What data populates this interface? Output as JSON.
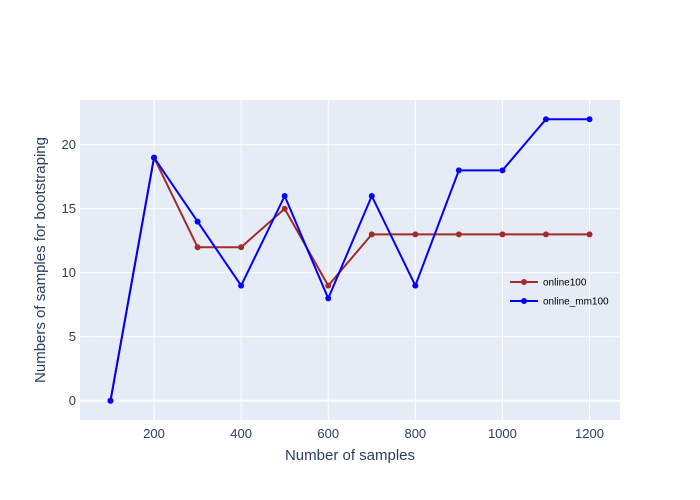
{
  "chart_data": {
    "type": "line",
    "title": "",
    "xlabel": "Number of samples",
    "ylabel": "Numbers of samples for bootstraping",
    "xlim": [
      30,
      1270
    ],
    "ylim": [
      -1.5,
      23.5
    ],
    "x_ticks": [
      200,
      400,
      600,
      800,
      1000,
      1200
    ],
    "y_ticks": [
      0,
      5,
      10,
      15,
      20
    ],
    "grid": true,
    "legend_position": "right",
    "x": [
      100,
      200,
      300,
      400,
      500,
      600,
      700,
      800,
      900,
      1000,
      1100,
      1200
    ],
    "series": [
      {
        "name": "online100",
        "color": "#a52a2a",
        "values": [
          0,
          19,
          12,
          12,
          15,
          9,
          13,
          13,
          13,
          13,
          13,
          13
        ]
      },
      {
        "name": "online_mm100",
        "color": "#0000ff",
        "values": [
          0,
          19,
          14,
          9,
          16,
          8,
          16,
          9,
          18,
          18,
          22,
          22
        ]
      }
    ],
    "plot_background": "#e5ecf6",
    "grid_color": "#ffffff"
  }
}
